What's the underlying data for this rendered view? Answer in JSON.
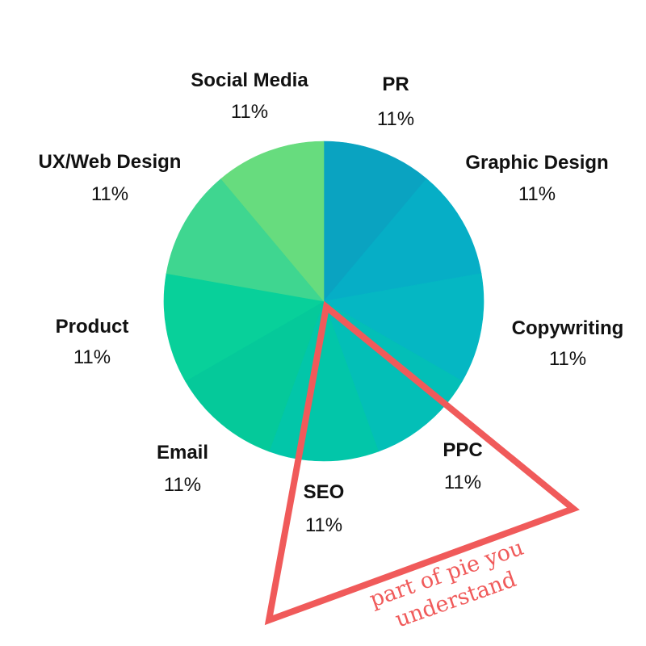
{
  "chart_data": {
    "type": "pie",
    "title": "",
    "categories": [
      "PR",
      "Graphic Design",
      "Copywriting",
      "PPC",
      "SEO",
      "Email",
      "Product",
      "UX/Web Design",
      "Social Media"
    ],
    "values": [
      11,
      11,
      11,
      11,
      11,
      11,
      11,
      11,
      11
    ],
    "value_labels": [
      "11%",
      "11%",
      "11%",
      "11%",
      "11%",
      "11%",
      "11%",
      "11%",
      "11%"
    ],
    "colors": [
      "#0aa3c1",
      "#06aec6",
      "#05b7c3",
      "#03bfb7",
      "#02c6a9",
      "#05c99a",
      "#08d09a",
      "#3fd690",
      "#67dc7e"
    ],
    "start_angle_deg": 0,
    "direction": "clockwise",
    "legend": "none",
    "annotation": {
      "text_lines": [
        "part of pie you",
        "understand"
      ],
      "shape": "triangle",
      "color": "#f05a5a"
    }
  }
}
